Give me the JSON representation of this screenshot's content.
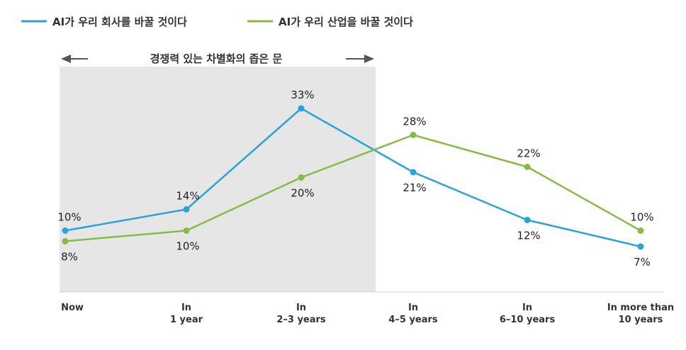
{
  "chart_data": {
    "type": "line",
    "categories": [
      [
        "Now"
      ],
      [
        "In",
        "1 year"
      ],
      [
        "In",
        "2–3 years"
      ],
      [
        "In",
        "4–5 years"
      ],
      [
        "In",
        "6–10 years"
      ],
      [
        "In more than",
        "10 years"
      ]
    ],
    "series": [
      {
        "name": "AI가 우리 회사를 바꿀 것이다",
        "color": "#29a3db",
        "values": [
          10,
          14,
          33,
          21,
          12,
          7
        ],
        "labels": [
          "10%",
          "14%",
          "33%",
          "21%",
          "12%",
          "7%"
        ],
        "label_pos": [
          "above",
          "above",
          "above",
          "below",
          "below",
          "below"
        ]
      },
      {
        "name": "AI가 우리 산업을 바꿀 것이다",
        "color": "#86bc42",
        "values": [
          8,
          10,
          20,
          28,
          22,
          10
        ],
        "labels": [
          "8%",
          "10%",
          "20%",
          "28%",
          "22%",
          "10%"
        ],
        "label_pos": [
          "below",
          "below",
          "below",
          "above",
          "above",
          "above"
        ]
      }
    ],
    "ylim": [
      0,
      35
    ],
    "legend_position": "top-left",
    "grid": false,
    "annotation": {
      "text": "경쟁력 있는 차별화의 좁은 문",
      "span_categories": [
        0,
        2
      ],
      "fill_color": "#e6e6e6"
    }
  }
}
